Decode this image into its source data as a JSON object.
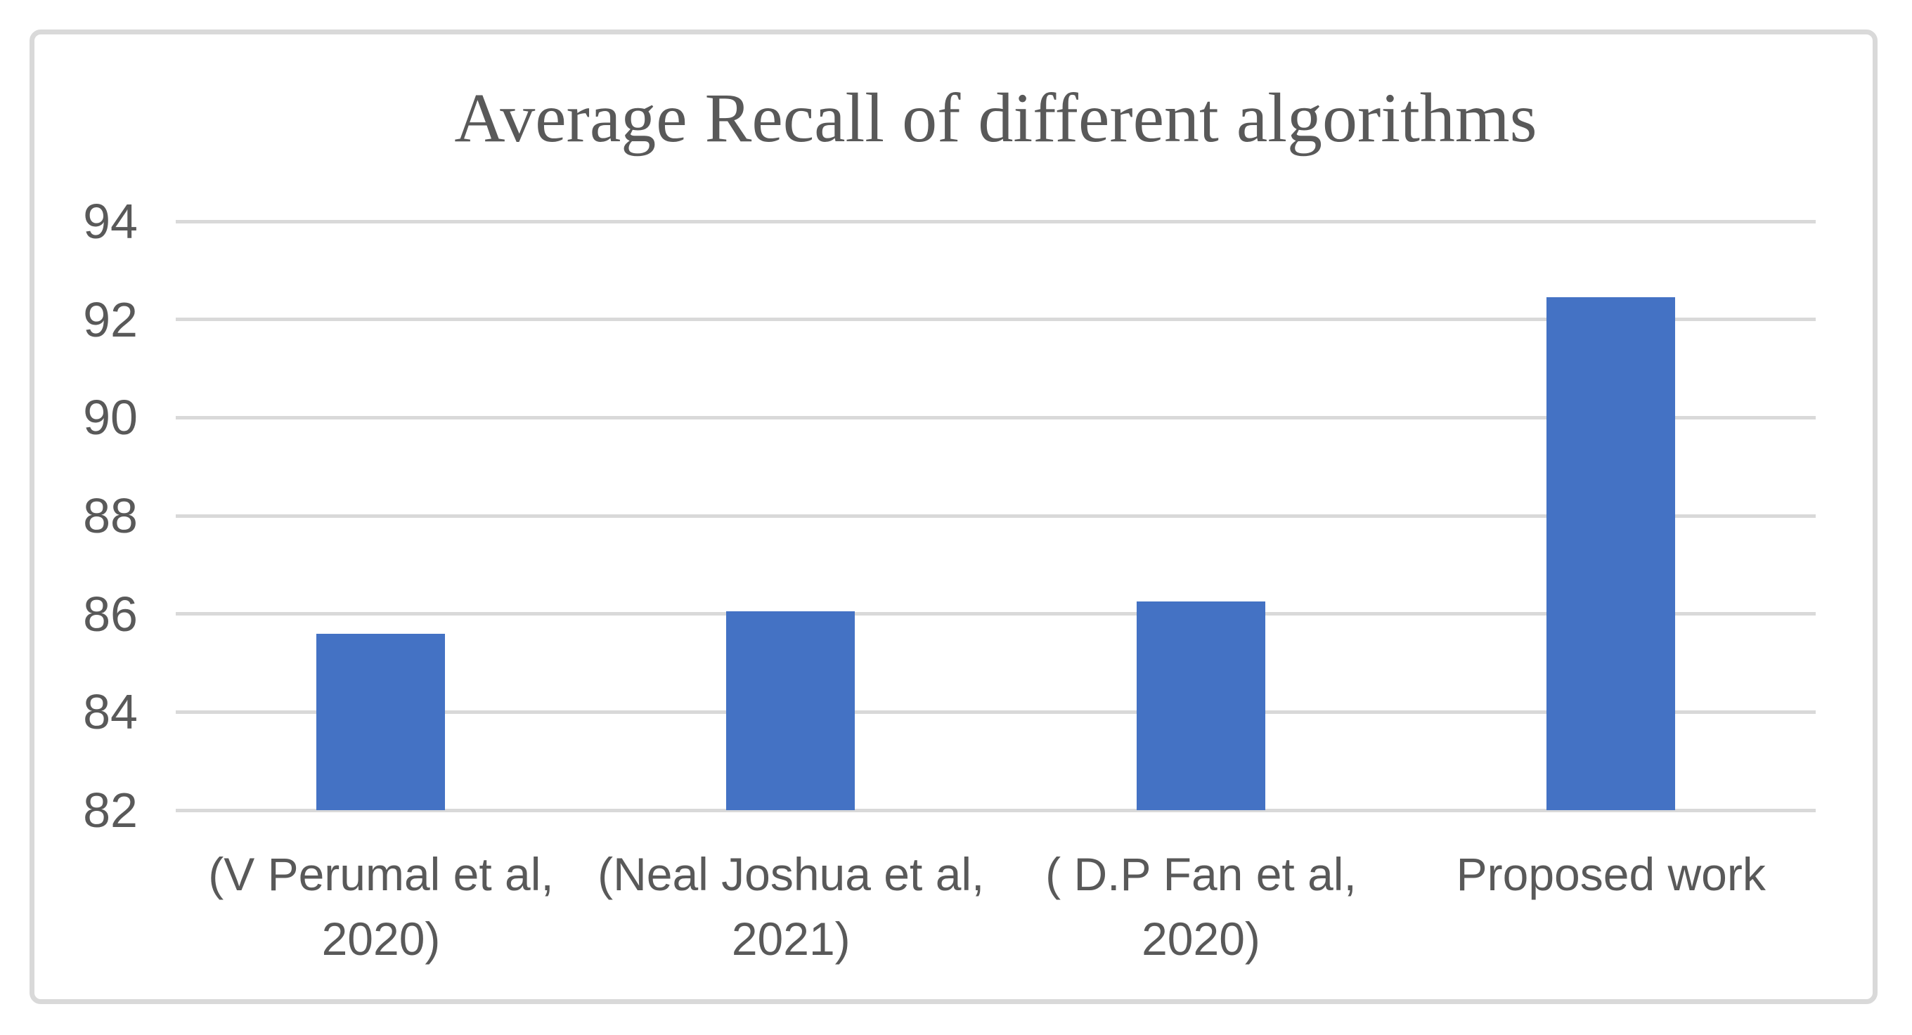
{
  "chart_data": {
    "type": "bar",
    "title": "Average Recall of different algorithms",
    "categories": [
      "(V Perumal et al,\n2020)",
      "(Neal Joshua et al,\n2021)",
      "( D.P Fan et al,\n2020)",
      "Proposed work"
    ],
    "values": [
      85.6,
      86.05,
      86.25,
      92.45
    ],
    "xlabel": "",
    "ylabel": "",
    "ylim": [
      82,
      94
    ],
    "yticks": [
      82,
      84,
      86,
      88,
      90,
      92,
      94
    ],
    "grid": true,
    "legend": false,
    "style": {
      "bar_color": "#4472C4",
      "gridline_color": "#D9D9D9",
      "frame_color": "#D9D9D9",
      "text_color": "#595959",
      "background_color": "#FFFFFF"
    }
  }
}
